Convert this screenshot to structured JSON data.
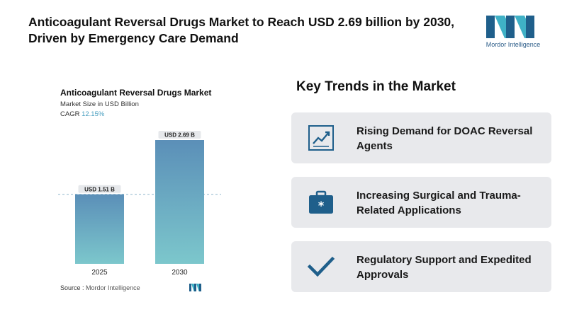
{
  "header": {
    "headline": "Anticoagulant Reversal Drugs Market to Reach USD 2.69 billion by 2030, Driven by Emergency Care Demand",
    "logo_text": "Mordor Intelligence"
  },
  "chart_panel": {
    "title": "Anticoagulant Reversal Drugs Market",
    "subtitle": "Market Size in USD Billion",
    "cagr_label": "CAGR",
    "cagr_value": "12.15%",
    "source_label": "Source :",
    "source_name": "Mordor Intelligence"
  },
  "chart_data": {
    "type": "bar",
    "title": "Anticoagulant Reversal Drugs Market",
    "ylabel": "Market Size in USD Billion",
    "categories": [
      "2025",
      "2030"
    ],
    "values": [
      1.51,
      2.69
    ],
    "value_labels": [
      "USD 1.51 B",
      "USD 2.69 B"
    ],
    "ylim": [
      0,
      2.8
    ],
    "grid": false,
    "reference_line": 1.51,
    "colors": {
      "bar_top": "#5b8fb8",
      "bar_bottom": "#7cc7cc",
      "label_bg": "#e6e8eb",
      "ref_line": "#8fb7cc"
    }
  },
  "trends": {
    "title": "Key Trends in the Market",
    "cards": [
      {
        "icon": "rising-chart-icon",
        "text": "Rising Demand for DOAC Reversal Agents"
      },
      {
        "icon": "medical-kit-icon",
        "text": "Increasing Surgical and Trauma-Related Applications"
      },
      {
        "icon": "checkmark-icon",
        "text": "Regulatory Support and Expedited Approvals"
      }
    ]
  },
  "colors": {
    "brand_dark": "#1f5f8b",
    "brand_teal": "#3fb1c6",
    "card_bg": "#e8e9ec"
  }
}
